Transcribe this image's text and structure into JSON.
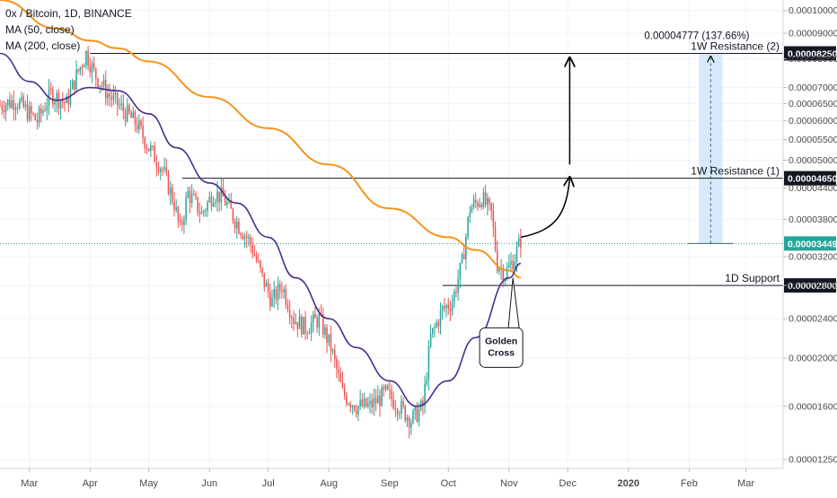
{
  "chart_data": {
    "type": "candlestick",
    "title": "0x / Bitcoin, 1D, BINANCE",
    "indicators": [
      "MA (50, close)",
      "MA (200, close)"
    ],
    "colors": {
      "up": "#26a69a",
      "down": "#ef5350",
      "ma50": "#4a2c8c",
      "ma200": "#f7931a",
      "measure_fill": "#cfe6fb",
      "axis_text": "#4a4a4a",
      "current_line": "#26a69a"
    },
    "y_axis": {
      "scale": "log",
      "range": [
        1.2e-06,
        1.05e-05
      ],
      "ticks": [
        "0.00010000",
        "0.00009000",
        "0.00008000",
        "0.00007000",
        "0.00006500",
        "0.00006000",
        "0.00005500",
        "0.00005000",
        "0.00004400",
        "0.00003800",
        "0.00003200",
        "0.00002800",
        "0.00002400",
        "0.00002000",
        "0.00001600",
        "0.00001250"
      ],
      "tick_values": [
        1e-05,
        9e-06,
        8e-06,
        7e-06,
        6.5e-06,
        6e-06,
        5.5e-06,
        5e-06,
        4.4e-06,
        3.8e-06,
        3.2e-06,
        2.8e-06,
        2.4e-06,
        2e-06,
        1.6e-06,
        1.25e-06
      ]
    },
    "x_axis": {
      "range": [
        "2019-02-14",
        "2020-03-20"
      ],
      "ticks": [
        {
          "label": "Mar",
          "date": "2019-03-01"
        },
        {
          "label": "Apr",
          "date": "2019-04-01"
        },
        {
          "label": "May",
          "date": "2019-05-01"
        },
        {
          "label": "Jun",
          "date": "2019-06-01"
        },
        {
          "label": "Jul",
          "date": "2019-07-01"
        },
        {
          "label": "Aug",
          "date": "2019-08-01"
        },
        {
          "label": "Sep",
          "date": "2019-09-01"
        },
        {
          "label": "Oct",
          "date": "2019-10-01"
        },
        {
          "label": "Nov",
          "date": "2019-11-01"
        },
        {
          "label": "Dec",
          "date": "2019-12-01"
        },
        {
          "label": "2020",
          "date": "2020-01-01"
        },
        {
          "label": "Feb",
          "date": "2020-02-01"
        },
        {
          "label": "Mar",
          "date": "2020-03-01"
        }
      ]
    },
    "price_path": [
      [
        "2019-02-14",
        6.45e-06
      ],
      [
        "2019-02-22",
        6.6e-06
      ],
      [
        "2019-03-05",
        6e-06
      ],
      [
        "2019-03-12",
        6.8e-06
      ],
      [
        "2019-03-20",
        6.5e-06
      ],
      [
        "2019-03-25",
        7.4e-06
      ],
      [
        "2019-03-30",
        8.2e-06
      ],
      [
        "2019-04-03",
        7.5e-06
      ],
      [
        "2019-04-10",
        6.8e-06
      ],
      [
        "2019-04-18",
        6.3e-06
      ],
      [
        "2019-04-25",
        5.9e-06
      ],
      [
        "2019-05-01",
        5.3e-06
      ],
      [
        "2019-05-08",
        4.8e-06
      ],
      [
        "2019-05-14",
        4.1e-06
      ],
      [
        "2019-05-17",
        3.6e-06
      ],
      [
        "2019-05-21",
        4.3e-06
      ],
      [
        "2019-05-28",
        3.9e-06
      ],
      [
        "2019-06-03",
        4.3e-06
      ],
      [
        "2019-06-08",
        4.2e-06
      ],
      [
        "2019-06-14",
        3.8e-06
      ],
      [
        "2019-06-22",
        3.4e-06
      ],
      [
        "2019-06-28",
        2.9e-06
      ],
      [
        "2019-07-03",
        2.6e-06
      ],
      [
        "2019-07-08",
        2.8e-06
      ],
      [
        "2019-07-14",
        2.4e-06
      ],
      [
        "2019-07-20",
        2.3e-06
      ],
      [
        "2019-07-27",
        2.4e-06
      ],
      [
        "2019-08-02",
        2.1e-06
      ],
      [
        "2019-08-08",
        1.7e-06
      ],
      [
        "2019-08-15",
        1.6e-06
      ],
      [
        "2019-08-22",
        1.6e-06
      ],
      [
        "2019-08-30",
        1.7e-06
      ],
      [
        "2019-09-06",
        1.6e-06
      ],
      [
        "2019-09-12",
        1.5e-06
      ],
      [
        "2019-09-18",
        1.6e-06
      ],
      [
        "2019-09-22",
        2.2e-06
      ],
      [
        "2019-09-28",
        2.5e-06
      ],
      [
        "2019-10-03",
        2.6e-06
      ],
      [
        "2019-10-08",
        3.1e-06
      ],
      [
        "2019-10-12",
        4e-06
      ],
      [
        "2019-10-18",
        4.2e-06
      ],
      [
        "2019-10-23",
        3.9e-06
      ],
      [
        "2019-10-26",
        3.1e-06
      ],
      [
        "2019-10-30",
        2.95e-06
      ],
      [
        "2019-11-04",
        3.2e-06
      ],
      [
        "2019-11-07",
        3.45e-06
      ]
    ],
    "ma50_path": [
      [
        "2019-02-14",
        8.2e-06
      ],
      [
        "2019-03-01",
        7.2e-06
      ],
      [
        "2019-03-15",
        6.6e-06
      ],
      [
        "2019-04-01",
        7e-06
      ],
      [
        "2019-04-15",
        6.9e-06
      ],
      [
        "2019-05-01",
        6.2e-06
      ],
      [
        "2019-05-15",
        5.3e-06
      ],
      [
        "2019-06-01",
        4.5e-06
      ],
      [
        "2019-06-15",
        4.1e-06
      ],
      [
        "2019-07-01",
        3.5e-06
      ],
      [
        "2019-07-15",
        2.9e-06
      ],
      [
        "2019-08-01",
        2.4e-06
      ],
      [
        "2019-08-15",
        2.1e-06
      ],
      [
        "2019-09-01",
        1.8e-06
      ],
      [
        "2019-09-15",
        1.6e-06
      ],
      [
        "2019-10-01",
        1.8e-06
      ],
      [
        "2019-10-15",
        2.2e-06
      ],
      [
        "2019-11-01",
        2.9e-06
      ],
      [
        "2019-11-07",
        3.1e-06
      ]
    ],
    "ma200_path": [
      [
        "2019-02-14",
        1.05e-05
      ],
      [
        "2019-03-15",
        9.2e-06
      ],
      [
        "2019-04-01",
        8.7e-06
      ],
      [
        "2019-04-15",
        8.4e-06
      ],
      [
        "2019-05-01",
        7.9e-06
      ],
      [
        "2019-06-01",
        6.7e-06
      ],
      [
        "2019-07-01",
        5.8e-06
      ],
      [
        "2019-08-01",
        4.9e-06
      ],
      [
        "2019-09-01",
        4e-06
      ],
      [
        "2019-10-01",
        3.5e-06
      ],
      [
        "2019-10-15",
        3.3e-06
      ],
      [
        "2019-11-01",
        3e-06
      ],
      [
        "2019-11-07",
        2.9e-06
      ]
    ],
    "levels": [
      {
        "label": "1W Resistance (2)",
        "value": 8.2e-06,
        "price_tag": "0.00008250",
        "start": "2019-04-01"
      },
      {
        "label": "1W Resistance (1)",
        "value": 4.6e-06,
        "price_tag": "0.00004650",
        "start": "2019-05-18"
      },
      {
        "label": "1D Support",
        "value": 2.8e-06,
        "price_tag": "0.00002800",
        "start": "2019-09-28"
      }
    ],
    "current_price": {
      "value": 3.4e-06,
      "tag": "0.00003449"
    },
    "measure": {
      "label": "0.00004777 (137.66%)",
      "from": 3.4e-06,
      "to": 8.2e-06,
      "start": "2020-02-06",
      "end": "2020-02-18"
    },
    "projection": {
      "curve_from": [
        "2019-11-07",
        3.5e-06
      ],
      "curve_to": [
        "2019-12-02",
        4.6e-06
      ],
      "arrow_from": [
        "2019-12-02",
        4.9e-06
      ],
      "arrow_to": [
        "2019-12-02",
        8e-06
      ]
    },
    "callout": {
      "text": [
        "Golden",
        "Cross"
      ],
      "point": [
        "2019-11-03",
        2.9e-06
      ],
      "box_center": [
        "2019-10-28",
        2.1e-06
      ]
    }
  }
}
